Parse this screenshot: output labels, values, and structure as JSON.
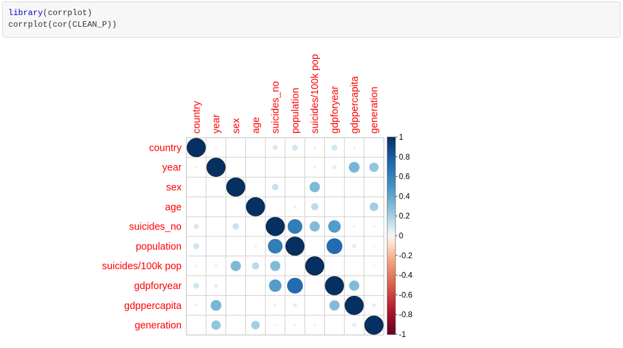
{
  "code": {
    "line1_fn": "library",
    "line1_rest": "(corrplot)",
    "line2": "corrplot(cor(CLEAN_P))"
  },
  "chart_data": {
    "type": "heatmap",
    "style": "circle correlation plot",
    "variables": [
      "country",
      "year",
      "sex",
      "age",
      "suicides_no",
      "population",
      "suicides/100k pop",
      "gdpforyear",
      "gdppercapita",
      "generation"
    ],
    "matrix": [
      [
        1.0,
        0.02,
        0.0,
        0.0,
        0.08,
        0.1,
        0.03,
        0.1,
        0.03,
        0.0
      ],
      [
        0.02,
        1.0,
        0.0,
        0.0,
        0.0,
        0.0,
        -0.03,
        0.05,
        0.33,
        0.25
      ],
      [
        0.0,
        0.0,
        1.0,
        0.0,
        0.12,
        0.0,
        0.31,
        0.0,
        0.0,
        0.0
      ],
      [
        0.0,
        0.0,
        0.0,
        1.0,
        0.0,
        -0.03,
        0.15,
        0.0,
        0.0,
        0.21
      ],
      [
        0.08,
        0.0,
        0.12,
        0.0,
        1.0,
        0.62,
        0.3,
        0.45,
        0.03,
        -0.02
      ],
      [
        0.1,
        0.0,
        0.0,
        -0.03,
        0.62,
        1.0,
        0.0,
        0.72,
        0.05,
        -0.02
      ],
      [
        0.03,
        -0.03,
        0.31,
        0.15,
        0.3,
        0.0,
        1.0,
        0.0,
        0.0,
        0.02
      ],
      [
        0.1,
        0.05,
        0.0,
        0.0,
        0.45,
        0.72,
        0.0,
        1.0,
        0.3,
        0.0
      ],
      [
        0.03,
        0.33,
        0.0,
        0.0,
        0.03,
        0.05,
        0.0,
        0.3,
        1.0,
        0.05
      ],
      [
        0.0,
        0.25,
        0.0,
        0.21,
        -0.02,
        -0.02,
        0.02,
        0.0,
        0.05,
        1.0
      ]
    ],
    "colorbar_ticks": [
      "1",
      "0.8",
      "0.6",
      "0.4",
      "0.2",
      "0",
      "-0.2",
      "-0.4",
      "-0.6",
      "-0.8",
      "-1"
    ],
    "range": [
      -1,
      1
    ],
    "label_color": "#ff0000",
    "grid": true
  }
}
